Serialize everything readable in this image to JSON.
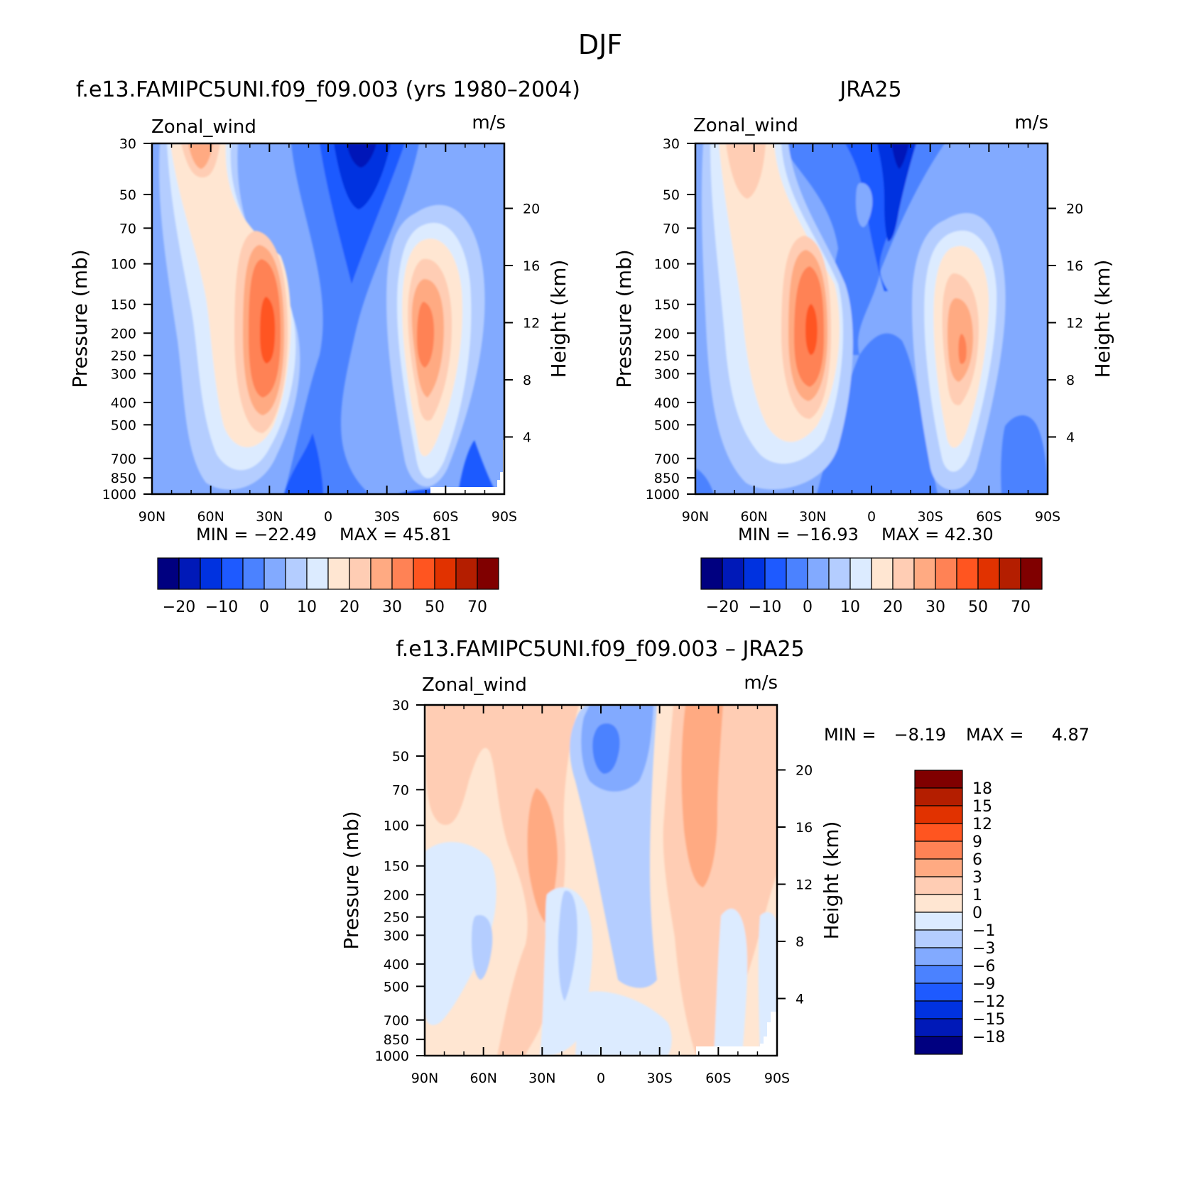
{
  "figure_title": "DJF",
  "chart_data": [
    {
      "type": "heatmap",
      "panel": "model",
      "title": "f.e13.FAMIPC5UNI.f09_f09.003 (yrs 1980–2004)",
      "variable": "Zonal_wind",
      "units": "m/s",
      "ylabel": "Pressure (mb)",
      "ylabel_right": "Height (km)",
      "x_ticks": [
        "90N",
        "60N",
        "30N",
        "0",
        "30S",
        "60S",
        "90S"
      ],
      "y_ticks": [
        "30",
        "50",
        "70",
        "100",
        "150",
        "200",
        "250",
        "300",
        "400",
        "500",
        "700",
        "850",
        "1000"
      ],
      "height_ticks": [
        "20",
        "16",
        "12",
        "8",
        "4"
      ],
      "min_label": "MIN =  −22.49",
      "max_label": "MAX =   45.81",
      "min": -22.49,
      "max": 45.81,
      "colorbar_labels": [
        "−20",
        "−10",
        "0",
        "10",
        "20",
        "30",
        "50",
        "70"
      ],
      "jets": [
        {
          "lat": 30,
          "pressure": 200,
          "value": 45.8
        },
        {
          "lat": -48,
          "pressure": 200,
          "value": 36
        },
        {
          "lat": -18,
          "pressure": 30,
          "value": -22.5
        }
      ]
    },
    {
      "type": "heatmap",
      "panel": "obs",
      "title": "JRA25",
      "variable": "Zonal_wind",
      "units": "m/s",
      "ylabel": "Pressure (mb)",
      "ylabel_right": "Height (km)",
      "x_ticks": [
        "90N",
        "60N",
        "30N",
        "0",
        "30S",
        "60S",
        "90S"
      ],
      "y_ticks": [
        "30",
        "50",
        "70",
        "100",
        "150",
        "200",
        "250",
        "300",
        "400",
        "500",
        "700",
        "850",
        "1000"
      ],
      "height_ticks": [
        "20",
        "16",
        "12",
        "8",
        "4"
      ],
      "min_label": "MIN =  −16.93",
      "max_label": "MAX =   42.30",
      "min": -16.93,
      "max": 42.3,
      "colorbar_labels": [
        "−20",
        "−10",
        "0",
        "10",
        "20",
        "30",
        "50",
        "70"
      ],
      "jets": [
        {
          "lat": 30,
          "pressure": 200,
          "value": 42.3
        },
        {
          "lat": -48,
          "pressure": 250,
          "value": 34
        },
        {
          "lat": -18,
          "pressure": 30,
          "value": -16.9
        }
      ]
    },
    {
      "type": "heatmap",
      "panel": "diff",
      "title": "f.e13.FAMIPC5UNI.f09_f09.003 – JRA25",
      "variable": "Zonal_wind",
      "units": "m/s",
      "ylabel": "Pressure (mb)",
      "ylabel_right": "Height (km)",
      "x_ticks": [
        "90N",
        "60N",
        "30N",
        "0",
        "30S",
        "60S",
        "90S"
      ],
      "y_ticks": [
        "30",
        "50",
        "70",
        "100",
        "150",
        "200",
        "250",
        "300",
        "400",
        "500",
        "700",
        "850",
        "1000"
      ],
      "height_ticks": [
        "20",
        "16",
        "12",
        "8",
        "4"
      ],
      "min_label": "MIN =",
      "min_value": "−8.19",
      "max_label": "MAX =",
      "max_value": "4.87",
      "min": -8.19,
      "max": 4.87,
      "colorbar_labels": [
        "18",
        "15",
        "12",
        "9",
        "6",
        "3",
        "1",
        "0",
        "−1",
        "−3",
        "−6",
        "−9",
        "−12",
        "−15",
        "−18"
      ]
    }
  ],
  "colors": {
    "main_colorbar": [
      "#000080",
      "#0019b8",
      "#0032e0",
      "#1e5aff",
      "#4b82ff",
      "#82aaff",
      "#b4cdff",
      "#dcebff",
      "#ffe6d2",
      "#ffcdb4",
      "#ffaa82",
      "#ff8255",
      "#ff5520",
      "#e13200",
      "#b41e00",
      "#800000"
    ],
    "diff_colorbar": [
      "#800000",
      "#b41e00",
      "#e13200",
      "#ff5520",
      "#ff8255",
      "#ffaa82",
      "#ffcdb4",
      "#ffe6d2",
      "#dcebff",
      "#b4cdff",
      "#82aaff",
      "#4b82ff",
      "#1e5aff",
      "#0032e0",
      "#0019b8",
      "#000080"
    ],
    "background_field": "#82aaff"
  }
}
